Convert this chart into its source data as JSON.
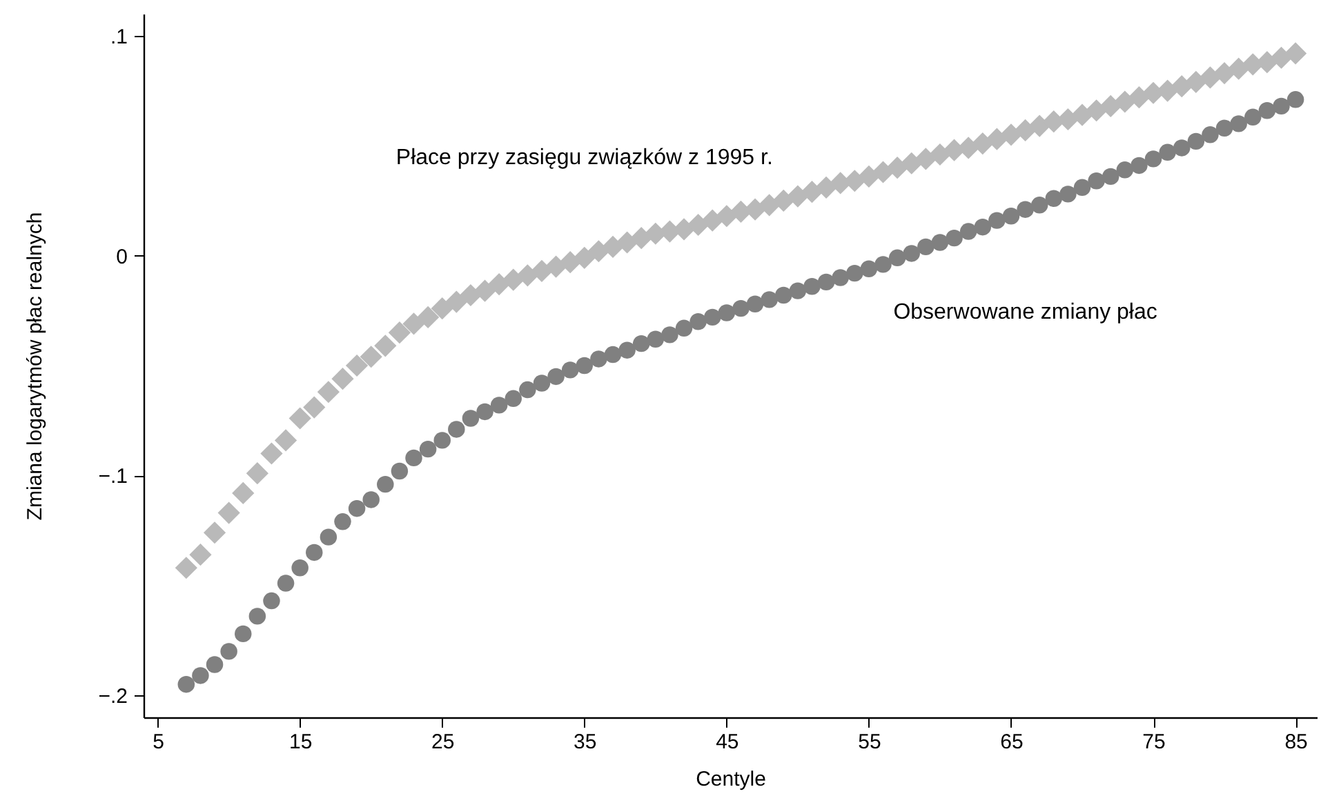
{
  "chart_data": {
    "type": "scatter",
    "xlabel": "Centyle",
    "ylabel": "Zmiana logarytmów płac realnych",
    "x": [
      7,
      8,
      9,
      10,
      11,
      12,
      13,
      14,
      15,
      16,
      17,
      18,
      19,
      20,
      21,
      22,
      23,
      24,
      25,
      26,
      27,
      28,
      29,
      30,
      31,
      32,
      33,
      34,
      35,
      36,
      37,
      38,
      39,
      40,
      41,
      42,
      43,
      44,
      45,
      46,
      47,
      48,
      49,
      50,
      51,
      52,
      53,
      54,
      55,
      56,
      57,
      58,
      59,
      60,
      61,
      62,
      63,
      64,
      65,
      66,
      67,
      68,
      69,
      70,
      71,
      72,
      73,
      74,
      75,
      76,
      77,
      78,
      79,
      80,
      81,
      82,
      83,
      84,
      85
    ],
    "series": [
      {
        "name": "Płace przy zasięgu związków z 1995 r.",
        "color": "#b9b9b9",
        "marker": "diamond",
        "values": [
          -0.142,
          -0.136,
          -0.126,
          -0.117,
          -0.108,
          -0.099,
          -0.09,
          -0.084,
          -0.074,
          -0.069,
          -0.062,
          -0.056,
          -0.05,
          -0.046,
          -0.041,
          -0.035,
          -0.031,
          -0.028,
          -0.024,
          -0.021,
          -0.018,
          -0.016,
          -0.013,
          -0.011,
          -0.009,
          -0.007,
          -0.005,
          -0.003,
          -0.001,
          0.002,
          0.004,
          0.006,
          0.008,
          0.01,
          0.011,
          0.012,
          0.014,
          0.016,
          0.018,
          0.02,
          0.021,
          0.023,
          0.025,
          0.027,
          0.029,
          0.031,
          0.033,
          0.034,
          0.036,
          0.038,
          0.04,
          0.042,
          0.044,
          0.046,
          0.048,
          0.049,
          0.051,
          0.053,
          0.055,
          0.057,
          0.059,
          0.061,
          0.062,
          0.064,
          0.066,
          0.068,
          0.07,
          0.072,
          0.074,
          0.075,
          0.077,
          0.079,
          0.081,
          0.083,
          0.085,
          0.087,
          0.088,
          0.09,
          0.092
        ]
      },
      {
        "name": "Obserwowane zmiany płac",
        "color": "#808080",
        "marker": "circle",
        "values": [
          -0.195,
          -0.191,
          -0.186,
          -0.18,
          -0.172,
          -0.164,
          -0.157,
          -0.149,
          -0.142,
          -0.135,
          -0.128,
          -0.121,
          -0.115,
          -0.111,
          -0.104,
          -0.098,
          -0.092,
          -0.088,
          -0.084,
          -0.079,
          -0.074,
          -0.071,
          -0.068,
          -0.065,
          -0.061,
          -0.058,
          -0.055,
          -0.052,
          -0.05,
          -0.047,
          -0.045,
          -0.043,
          -0.04,
          -0.038,
          -0.036,
          -0.033,
          -0.03,
          -0.028,
          -0.026,
          -0.024,
          -0.022,
          -0.02,
          -0.018,
          -0.016,
          -0.014,
          -0.012,
          -0.01,
          -0.008,
          -0.006,
          -0.004,
          -0.001,
          0.001,
          0.004,
          0.006,
          0.008,
          0.011,
          0.013,
          0.016,
          0.018,
          0.021,
          0.023,
          0.026,
          0.028,
          0.031,
          0.034,
          0.036,
          0.039,
          0.041,
          0.044,
          0.047,
          0.049,
          0.052,
          0.055,
          0.058,
          0.06,
          0.063,
          0.066,
          0.068,
          0.071
        ]
      }
    ],
    "xlim": [
      4,
      86.5
    ],
    "xticks": [
      5,
      15,
      25,
      35,
      45,
      55,
      65,
      75,
      85
    ],
    "ylim": [
      -0.21,
      0.11
    ],
    "yticks": [
      {
        "value": -0.2,
        "label": "−.2"
      },
      {
        "value": -0.1,
        "label": "−.1"
      },
      0,
      {
        "value": 0.1,
        "label": ".1"
      }
    ]
  }
}
